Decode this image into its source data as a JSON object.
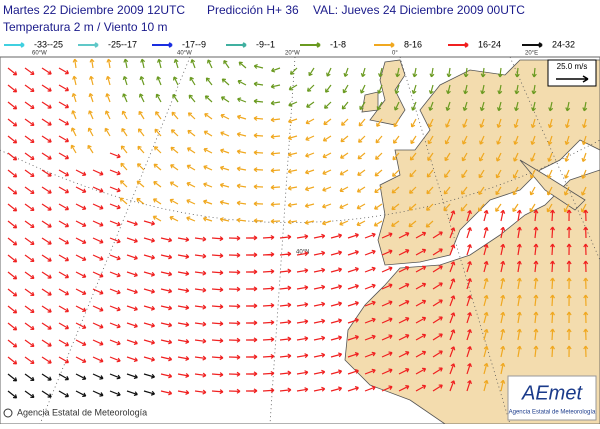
{
  "header": {
    "run": "Martes 22 Diciembre 2009 12UTC",
    "forecast": "Predicción H+ 36",
    "valid": "VAL: Jueves 24 Diciembre 2009 00UTC",
    "fields": "Temperatura 2 m / Viento  10 m"
  },
  "legend": [
    {
      "label": "-33--25",
      "color": "#40d0e0"
    },
    {
      "label": "-25--17",
      "color": "#60c8c8"
    },
    {
      "label": "-17--9",
      "color": "#1a2ee0"
    },
    {
      "label": "-9--1",
      "color": "#40b0a0"
    },
    {
      "label": "-1-8",
      "color": "#6a9a20"
    },
    {
      "label": "8-16",
      "color": "#f0a820"
    },
    {
      "label": "16-24",
      "color": "#f02020"
    },
    {
      "label": "24-32",
      "color": "#101010"
    }
  ],
  "scale_label": "25.0 m/s",
  "grid_labels": [
    "60°W",
    "40°W",
    "20°W",
    "0°",
    "20°E",
    "40°N"
  ],
  "footer": "Agencia Estatal de Meteorología",
  "logo": {
    "name": "AEmet",
    "subtitle": "Agencia Estatal de Meteorología"
  }
}
